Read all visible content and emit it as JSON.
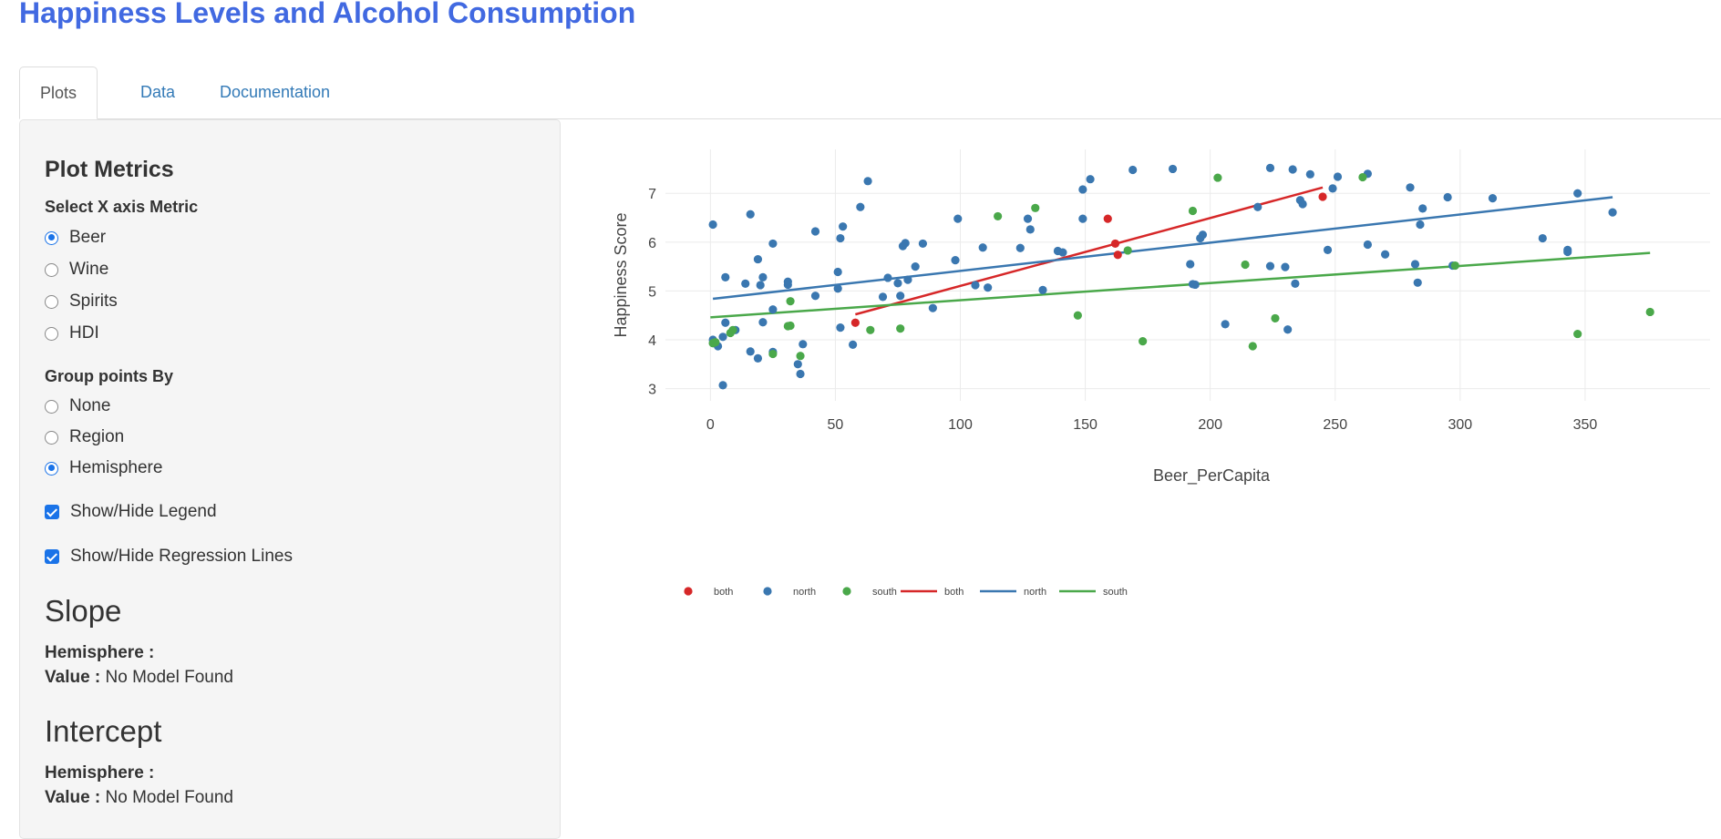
{
  "title": "Happiness Levels and Alcohol Consumption",
  "tabs": [
    {
      "label": "Plots",
      "active": true
    },
    {
      "label": "Data",
      "active": false
    },
    {
      "label": "Documentation",
      "active": false
    }
  ],
  "sidebar": {
    "heading": "Plot Metrics",
    "x_axis": {
      "label": "Select X axis Metric",
      "options": [
        "Beer",
        "Wine",
        "Spirits",
        "HDI"
      ],
      "selected": "Beer"
    },
    "group": {
      "label": "Group points By",
      "options": [
        "None",
        "Region",
        "Hemisphere"
      ],
      "selected": "Hemisphere"
    },
    "legend_toggle": {
      "label": "Show/Hide Legend",
      "checked": true
    },
    "regression_toggle": {
      "label": "Show/Hide Regression Lines",
      "checked": true
    },
    "slope": {
      "title": "Slope",
      "group_label": "Hemisphere :",
      "group_value": "",
      "value_label": "Value :",
      "value": "No Model Found"
    },
    "intercept": {
      "title": "Intercept",
      "group_label": "Hemisphere :",
      "group_value": "",
      "value_label": "Value :",
      "value": "No Model Found"
    }
  },
  "chart_data": {
    "type": "scatter",
    "xlabel": "Beer_PerCapita",
    "ylabel": "Happiness Score",
    "xlim": [
      -18,
      400
    ],
    "ylim": [
      2.75,
      7.9
    ],
    "xticks": [
      0,
      50,
      100,
      150,
      200,
      250,
      300,
      350
    ],
    "yticks": [
      3,
      4,
      5,
      6,
      7
    ],
    "grid": true,
    "legend_position": "bottom-left",
    "colors": {
      "both": "#d62728",
      "north": "#3a77b0",
      "south": "#4aa84a"
    },
    "series": [
      {
        "name": "both",
        "points": [
          [
            58,
            4.35
          ],
          [
            159,
            6.48
          ],
          [
            162,
            5.97
          ],
          [
            163,
            5.74
          ],
          [
            245,
            6.93
          ]
        ]
      },
      {
        "name": "north",
        "points": [
          [
            1,
            6.36
          ],
          [
            1,
            4.0
          ],
          [
            3,
            3.87
          ],
          [
            5,
            4.06
          ],
          [
            5,
            3.07
          ],
          [
            6,
            5.28
          ],
          [
            6,
            4.35
          ],
          [
            10,
            4.2
          ],
          [
            14,
            5.15
          ],
          [
            16,
            3.76
          ],
          [
            16,
            6.57
          ],
          [
            19,
            3.62
          ],
          [
            19,
            5.65
          ],
          [
            20,
            5.12
          ],
          [
            21,
            5.28
          ],
          [
            21,
            4.36
          ],
          [
            25,
            4.62
          ],
          [
            25,
            5.97
          ],
          [
            25,
            3.75
          ],
          [
            31,
            5.13
          ],
          [
            31,
            5.19
          ],
          [
            35,
            3.5
          ],
          [
            36,
            3.3
          ],
          [
            37,
            3.91
          ],
          [
            42,
            4.9
          ],
          [
            42,
            6.22
          ],
          [
            51,
            5.05
          ],
          [
            51,
            5.39
          ],
          [
            52,
            4.25
          ],
          [
            52,
            6.08
          ],
          [
            53,
            6.32
          ],
          [
            57,
            3.9
          ],
          [
            60,
            6.72
          ],
          [
            63,
            7.25
          ],
          [
            69,
            4.88
          ],
          [
            71,
            5.27
          ],
          [
            75,
            5.16
          ],
          [
            76,
            4.9
          ],
          [
            77,
            5.92
          ],
          [
            78,
            5.98
          ],
          [
            79,
            5.23
          ],
          [
            82,
            5.5
          ],
          [
            85,
            5.97
          ],
          [
            89,
            4.65
          ],
          [
            98,
            5.63
          ],
          [
            99,
            6.48
          ],
          [
            106,
            5.12
          ],
          [
            109,
            5.89
          ],
          [
            111,
            5.07
          ],
          [
            124,
            5.88
          ],
          [
            127,
            6.48
          ],
          [
            128,
            6.26
          ],
          [
            133,
            5.02
          ],
          [
            139,
            5.82
          ],
          [
            141,
            5.79
          ],
          [
            149,
            6.48
          ],
          [
            149,
            7.08
          ],
          [
            152,
            7.29
          ],
          [
            169,
            7.48
          ],
          [
            185,
            7.5
          ],
          [
            192,
            5.55
          ],
          [
            193,
            5.14
          ],
          [
            194,
            5.13
          ],
          [
            196,
            6.08
          ],
          [
            197,
            6.15
          ],
          [
            206,
            4.32
          ],
          [
            219,
            6.72
          ],
          [
            224,
            7.52
          ],
          [
            224,
            5.51
          ],
          [
            230,
            5.49
          ],
          [
            231,
            4.21
          ],
          [
            233,
            7.49
          ],
          [
            234,
            5.15
          ],
          [
            236,
            6.86
          ],
          [
            237,
            6.78
          ],
          [
            240,
            7.39
          ],
          [
            247,
            5.84
          ],
          [
            249,
            7.1
          ],
          [
            251,
            7.34
          ],
          [
            263,
            7.4
          ],
          [
            263,
            5.95
          ],
          [
            270,
            5.75
          ],
          [
            280,
            7.12
          ],
          [
            282,
            5.55
          ],
          [
            283,
            5.17
          ],
          [
            284,
            6.36
          ],
          [
            285,
            6.69
          ],
          [
            295,
            6.92
          ],
          [
            297,
            5.52
          ],
          [
            313,
            6.9
          ],
          [
            333,
            6.08
          ],
          [
            343,
            5.84
          ],
          [
            343,
            5.8
          ],
          [
            347,
            7.0
          ],
          [
            361,
            6.61
          ]
        ]
      },
      {
        "name": "south",
        "points": [
          [
            1,
            3.93
          ],
          [
            2,
            3.95
          ],
          [
            8,
            4.14
          ],
          [
            9,
            4.2
          ],
          [
            25,
            3.71
          ],
          [
            31,
            4.28
          ],
          [
            32,
            4.79
          ],
          [
            32,
            4.29
          ],
          [
            36,
            3.67
          ],
          [
            64,
            4.2
          ],
          [
            76,
            4.23
          ],
          [
            115,
            6.53
          ],
          [
            130,
            6.7
          ],
          [
            147,
            4.5
          ],
          [
            167,
            5.83
          ],
          [
            173,
            3.97
          ],
          [
            193,
            6.64
          ],
          [
            203,
            7.32
          ],
          [
            214,
            5.54
          ],
          [
            217,
            3.87
          ],
          [
            226,
            4.44
          ],
          [
            261,
            7.33
          ],
          [
            298,
            5.52
          ],
          [
            347,
            4.12
          ],
          [
            376,
            4.57
          ]
        ]
      }
    ],
    "regression": [
      {
        "name": "both",
        "x": [
          58,
          245
        ],
        "y": [
          4.52,
          7.12
        ]
      },
      {
        "name": "north",
        "x": [
          1,
          361
        ],
        "y": [
          4.84,
          6.92
        ]
      },
      {
        "name": "south",
        "x": [
          0,
          376
        ],
        "y": [
          4.46,
          5.78
        ]
      }
    ]
  }
}
